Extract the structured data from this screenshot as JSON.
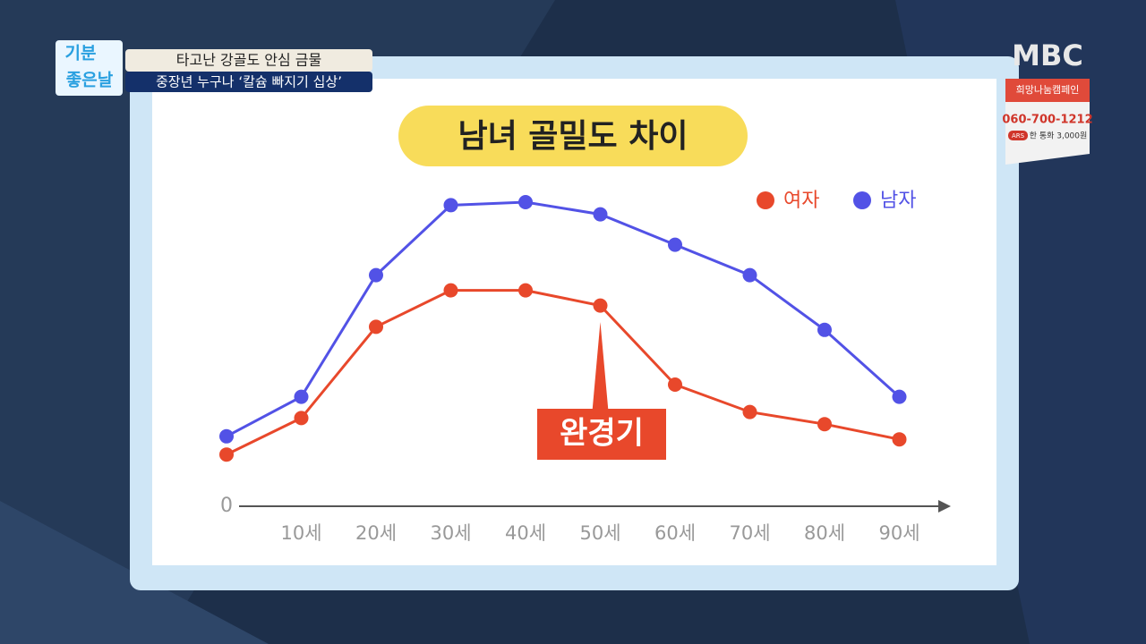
{
  "chart_data": {
    "type": "line",
    "title": "남녀 골밀도 차이",
    "categories": [
      null,
      "10세",
      "20세",
      "30세",
      "40세",
      "50세",
      "60세",
      "70세",
      "80세",
      "90세"
    ],
    "series": [
      {
        "name": "여자",
        "color": "#e8482b",
        "values": [
          17,
          29,
          59,
          71,
          71,
          66,
          40,
          31,
          27,
          22
        ]
      },
      {
        "name": "남자",
        "color": "#5252e6",
        "values": [
          23,
          36,
          76,
          99,
          100,
          96,
          86,
          76,
          58,
          36
        ]
      }
    ],
    "ylim": [
      0,
      100
    ],
    "yticks": [
      0
    ],
    "legend": "top-right",
    "annotation": "완경기"
  },
  "overlay": {
    "logo": [
      "기분",
      "좋은날"
    ],
    "captions": [
      "타고난 강골도 안심 금물",
      "중장년 누구나 ‘칼슘 빠지기 십상’"
    ],
    "broadcaster": "MBC",
    "campaign": {
      "title": "희망나눔캠페인",
      "phone": "060-700-1212",
      "ars": "ARS",
      "price": "한 통화 3,000원"
    }
  }
}
